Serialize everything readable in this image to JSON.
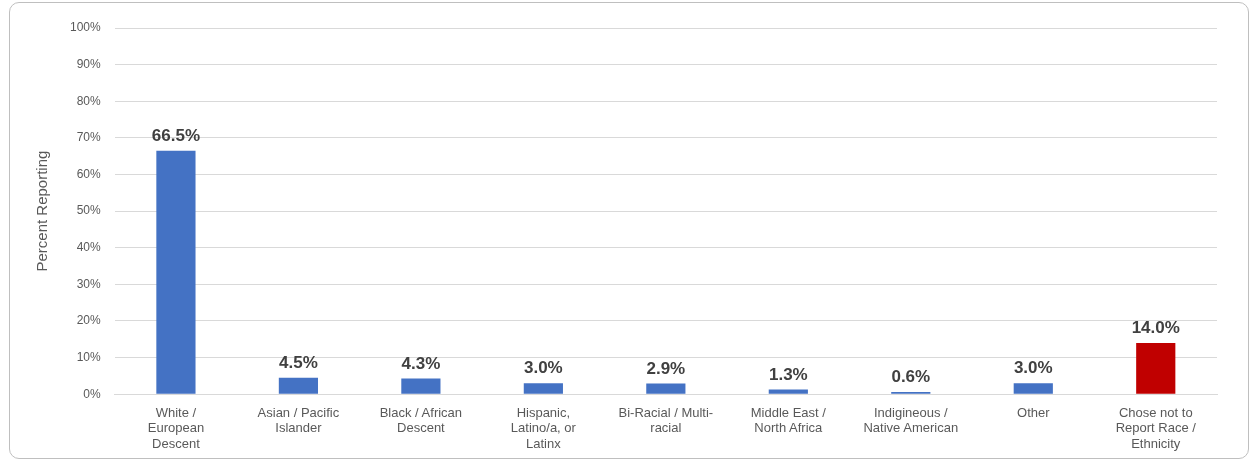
{
  "chart_data": {
    "type": "bar",
    "ylabel": "Percent Reporting",
    "categories": [
      "White / European Descent",
      "Asian / Pacific Islander",
      "Black / African Descent",
      "Hispanic, Latino/a, or Latinx",
      "Bi-Racial / Multi-racial",
      "Middle East / North Africa",
      "Indigineous / Native American",
      "Other",
      "Chose not to Report Race / Ethnicity"
    ],
    "values": [
      66.5,
      4.5,
      4.3,
      3.0,
      2.9,
      1.3,
      0.6,
      3.0,
      14.0
    ],
    "colors": [
      "#4472c4",
      "#4472c4",
      "#4472c4",
      "#4472c4",
      "#4472c4",
      "#4472c4",
      "#4472c4",
      "#4472c4",
      "#c00000"
    ],
    "value_labels": [
      "66.5%",
      "4.5%",
      "4.3%",
      "3.0%",
      "2.9%",
      "1.3%",
      "0.6%",
      "3.0%",
      "14.0%"
    ],
    "ylim": [
      0,
      100
    ],
    "yticks": [
      {
        "value": 0,
        "label": "0%"
      },
      {
        "value": 10,
        "label": "10%"
      },
      {
        "value": 20,
        "label": "20%"
      },
      {
        "value": 30,
        "label": "30%"
      },
      {
        "value": 40,
        "label": "40%"
      },
      {
        "value": 50,
        "label": "50%"
      },
      {
        "value": 60,
        "label": "60%"
      },
      {
        "value": 70,
        "label": "70%"
      },
      {
        "value": 80,
        "label": "80%"
      },
      {
        "value": 90,
        "label": "90%"
      },
      {
        "value": 100,
        "label": "100%"
      }
    ],
    "grid": "y"
  }
}
